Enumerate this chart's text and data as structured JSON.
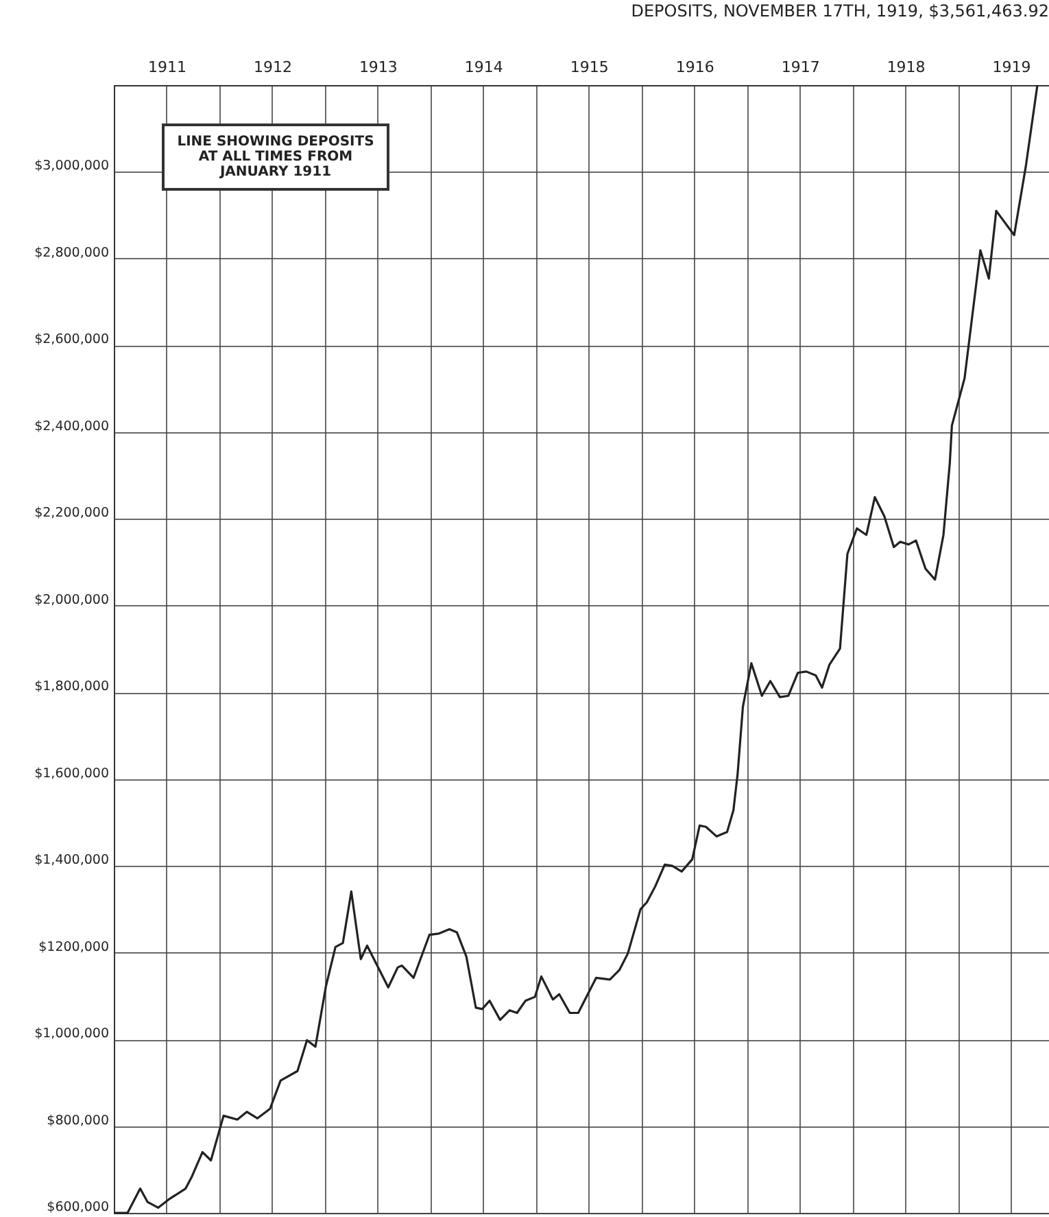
{
  "chart_data": {
    "type": "line",
    "title": "DEPOSITS, NOVEMBER 17TH, 1919, $3,561,463.92",
    "annotations": [
      "LINE SHOWING DEPOSITS AT ALL TIMES FROM JANUARY 1911"
    ],
    "x": [
      1911.0,
      1911.13,
      1911.25,
      1911.32,
      1911.42,
      1911.52,
      1911.68,
      1911.74,
      1911.84,
      1911.92,
      1912.04,
      1912.17,
      1912.26,
      1912.36,
      1912.48,
      1912.58,
      1912.74,
      1912.83,
      1912.91,
      1913.01,
      1913.1,
      1913.17,
      1913.25,
      1913.34,
      1913.4,
      1913.6,
      1913.69,
      1913.73,
      1913.84,
      1913.99,
      1914.08,
      1914.18,
      1914.25,
      1914.34,
      1914.43,
      1914.49,
      1914.56,
      1914.66,
      1914.75,
      1914.82,
      1914.9,
      1914.99,
      1915.05,
      1915.16,
      1915.22,
      1915.32,
      1915.4,
      1915.57,
      1915.7,
      1915.79,
      1915.87,
      1915.99,
      1916.05,
      1916.13,
      1916.22,
      1916.29,
      1916.38,
      1916.48,
      1916.55,
      1916.61,
      1916.71,
      1916.81,
      1916.87,
      1916.91,
      1916.96,
      1917.04,
      1917.14,
      1917.22,
      1917.31,
      1917.39,
      1917.48,
      1917.56,
      1917.65,
      1917.71,
      1917.78,
      1917.88,
      1917.95,
      1918.04,
      1918.13,
      1918.21,
      1918.3,
      1918.39,
      1918.45,
      1918.53,
      1918.6,
      1918.69,
      1918.78,
      1918.86,
      1918.92,
      1918.94,
      1919.06,
      1919.21,
      1919.29,
      1919.36,
      1919.53,
      1919.64,
      1919.75
    ],
    "series": [
      {
        "color": "#222222",
        "values": [
          600000,
          600000,
          656000,
          625000,
          612000,
          631000,
          656000,
          684000,
          740000,
          721000,
          824000,
          815000,
          833000,
          818000,
          840000,
          905000,
          927000,
          998000,
          983000,
          1123000,
          1213000,
          1222000,
          1341000,
          1185000,
          1216000,
          1120000,
          1166000,
          1170000,
          1142000,
          1241000,
          1244000,
          1254000,
          1247000,
          1191000,
          1073000,
          1070000,
          1089000,
          1045000,
          1067000,
          1061000,
          1089000,
          1098000,
          1145000,
          1092000,
          1104000,
          1061000,
          1061000,
          1142000,
          1138000,
          1160000,
          1198000,
          1300000,
          1316000,
          1353000,
          1403000,
          1400000,
          1387000,
          1415000,
          1493000,
          1490000,
          1468000,
          1478000,
          1528000,
          1612000,
          1767000,
          1867000,
          1792000,
          1826000,
          1789000,
          1792000,
          1845000,
          1848000,
          1839000,
          1811000,
          1864000,
          1901000,
          2119000,
          2178000,
          2163000,
          2250000,
          2206000,
          2135000,
          2147000,
          2141000,
          2150000,
          2085000,
          2060000,
          2163000,
          2328000,
          2415000,
          2524000,
          2819000,
          2754000,
          2910000,
          2854000,
          3012000,
          3200000
        ]
      }
    ],
    "xlim": [
      1911,
      1919.86
    ],
    "xticks": [
      {
        "value": 1911,
        "label": null
      },
      {
        "value": 1911.5,
        "label": "1911"
      },
      {
        "value": 1912,
        "label": null
      },
      {
        "value": 1912.5,
        "label": "1912"
      },
      {
        "value": 1913,
        "label": null
      },
      {
        "value": 1913.5,
        "label": "1913"
      },
      {
        "value": 1914,
        "label": null
      },
      {
        "value": 1914.5,
        "label": "1914"
      },
      {
        "value": 1915,
        "label": null
      },
      {
        "value": 1915.5,
        "label": "1915"
      },
      {
        "value": 1916,
        "label": null
      },
      {
        "value": 1916.5,
        "label": "1916"
      },
      {
        "value": 1917,
        "label": null
      },
      {
        "value": 1917.5,
        "label": "1917"
      },
      {
        "value": 1918,
        "label": null
      },
      {
        "value": 1918.5,
        "label": "1918"
      },
      {
        "value": 1919,
        "label": null
      },
      {
        "value": 1919.5,
        "label": "1919"
      }
    ],
    "ylim": [
      600000,
      3200000
    ],
    "yticks": [
      {
        "value": 600000,
        "label": "$600,000"
      },
      {
        "value": 800000,
        "label": "$800,000"
      },
      {
        "value": 1000000,
        "label": "$1,000,000"
      },
      {
        "value": 1200000,
        "label": "$1200,000"
      },
      {
        "value": 1400000,
        "label": "$1,400,000"
      },
      {
        "value": 1600000,
        "label": "$1,600,000"
      },
      {
        "value": 1800000,
        "label": "$1,800,000"
      },
      {
        "value": 2000000,
        "label": "$2,000,000"
      },
      {
        "value": 2200000,
        "label": "$2,200,000"
      },
      {
        "value": 2400000,
        "label": "$2,400,000"
      },
      {
        "value": 2600000,
        "label": "$2,600,000"
      },
      {
        "value": 2800000,
        "label": "$2,800,000"
      },
      {
        "value": 3000000,
        "label": "$3,000,000"
      }
    ],
    "grid": true,
    "marker": "none",
    "line_style": "solid"
  }
}
